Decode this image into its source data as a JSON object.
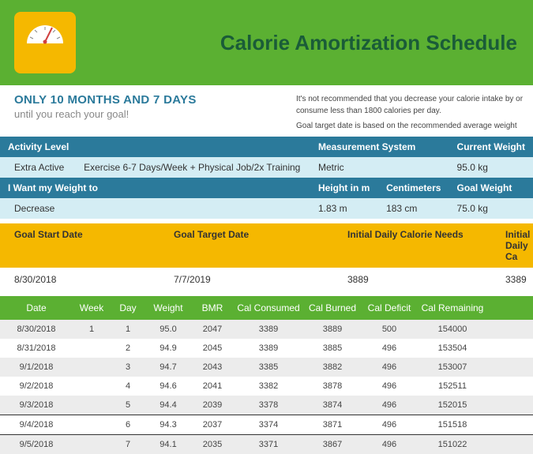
{
  "header": {
    "title": "Calorie Amortization Schedule"
  },
  "subhead": {
    "line1": "ONLY 10 MONTHS AND 7 DAYS",
    "line2": "until you reach your goal!",
    "note1": "It's not recommended that you decrease your calorie intake by or consume less than 1800 calories per day.",
    "note2": "Goal target date is based on the recommended average weight"
  },
  "info": {
    "activity_label": "Activity Level",
    "activity_value": "Extra Active",
    "activity_desc": "Exercise 6-7 Days/Week + Physical Job/2x Training",
    "meas_label": "Measurement System",
    "meas_value": "Metric",
    "curwt_label": "Current Weight",
    "curwt_value": "95.0 kg",
    "want_label": "I Want my Weight to",
    "want_value": "Decrease",
    "height_m_label": "Height in m",
    "height_m_value": "1.83 m",
    "cm_label": "Centimeters",
    "cm_value": "183 cm",
    "goalwt_label": "Goal Weight",
    "goalwt_value": "75.0 kg"
  },
  "goal": {
    "start_label": "Goal Start Date",
    "start_value": "8/30/2018",
    "target_label": "Goal Target Date",
    "target_value": "7/7/2019",
    "initneeds_label": "Initial Daily Calorie Needs",
    "initneeds_value": "3889",
    "initgoal_label": "Initial Daily Ca",
    "initgoal_value": "3389"
  },
  "table": {
    "headers": {
      "date": "Date",
      "week": "Week",
      "day": "Day",
      "weight": "Weight",
      "bmr": "BMR",
      "cons": "Cal Consumed",
      "burn": "Cal Burned",
      "def": "Cal Deficit",
      "rem": "Cal Remaining"
    },
    "rows": [
      {
        "date": "8/30/2018",
        "week": "1",
        "day": "1",
        "weight": "95.0",
        "bmr": "2047",
        "cons": "3389",
        "burn": "3889",
        "def": "500",
        "rem": "154000"
      },
      {
        "date": "8/31/2018",
        "week": "",
        "day": "2",
        "weight": "94.9",
        "bmr": "2045",
        "cons": "3389",
        "burn": "3885",
        "def": "496",
        "rem": "153504"
      },
      {
        "date": "9/1/2018",
        "week": "",
        "day": "3",
        "weight": "94.7",
        "bmr": "2043",
        "cons": "3385",
        "burn": "3882",
        "def": "496",
        "rem": "153007"
      },
      {
        "date": "9/2/2018",
        "week": "",
        "day": "4",
        "weight": "94.6",
        "bmr": "2041",
        "cons": "3382",
        "burn": "3878",
        "def": "496",
        "rem": "152511"
      },
      {
        "date": "9/3/2018",
        "week": "",
        "day": "5",
        "weight": "94.4",
        "bmr": "2039",
        "cons": "3378",
        "burn": "3874",
        "def": "496",
        "rem": "152015"
      },
      {
        "date": "9/4/2018",
        "week": "",
        "day": "6",
        "weight": "94.3",
        "bmr": "2037",
        "cons": "3374",
        "burn": "3871",
        "def": "496",
        "rem": "151518",
        "hi": true
      },
      {
        "date": "9/5/2018",
        "week": "",
        "day": "7",
        "weight": "94.1",
        "bmr": "2035",
        "cons": "3371",
        "burn": "3867",
        "def": "496",
        "rem": "151022"
      }
    ]
  },
  "colors": {
    "green": "#5bb032",
    "darkgreen": "#1a5c38",
    "teal": "#2b7a9b",
    "lightteal": "#d4edf4",
    "yellow": "#f5b800",
    "rowalt": "#ececec"
  }
}
